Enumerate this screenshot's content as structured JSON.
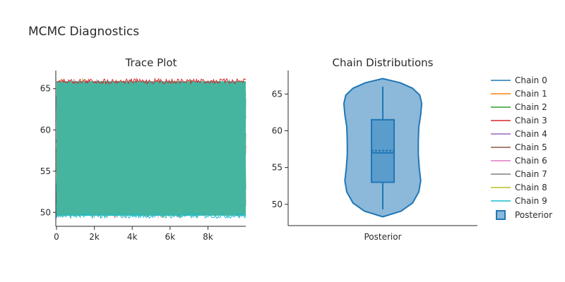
{
  "figure": {
    "title": "MCMC Diagnostics"
  },
  "chart_data": [
    {
      "type": "line",
      "title": "Trace Plot",
      "xlabel": "",
      "ylabel": "",
      "xlim": [
        0,
        10000
      ],
      "ylim": [
        48.4,
        67.2
      ],
      "x_ticks": [
        0,
        2000,
        4000,
        6000,
        8000
      ],
      "x_tick_labels": [
        "0",
        "2k",
        "4k",
        "6k",
        "8k"
      ],
      "y_ticks": [
        50,
        55,
        60,
        65
      ],
      "y_tick_labels": [
        "50",
        "55",
        "60",
        "65"
      ],
      "value_range": [
        49.3,
        66.2
      ],
      "n_iterations": 10000,
      "grid": false,
      "series": [
        {
          "name": "Chain 0",
          "color": "#1f77b4"
        },
        {
          "name": "Chain 1",
          "color": "#ff7f0e"
        },
        {
          "name": "Chain 2",
          "color": "#2ca02c"
        },
        {
          "name": "Chain 3",
          "color": "#d62728"
        },
        {
          "name": "Chain 4",
          "color": "#9467bd"
        },
        {
          "name": "Chain 5",
          "color": "#8c564b"
        },
        {
          "name": "Chain 6",
          "color": "#e377c2"
        },
        {
          "name": "Chain 7",
          "color": "#7f7f7f"
        },
        {
          "name": "Chain 8",
          "color": "#bcbd22"
        },
        {
          "name": "Chain 9",
          "color": "#17becf"
        }
      ]
    },
    {
      "type": "violin",
      "title": "Chain Distributions",
      "xlabel": "",
      "ylabel": "",
      "categories": [
        "Posterior"
      ],
      "ylim": [
        47.1,
        68.2
      ],
      "y_ticks": [
        50,
        55,
        60,
        65
      ],
      "y_tick_labels": [
        "50",
        "55",
        "60",
        "65"
      ],
      "series": [
        {
          "name": "Posterior",
          "color": "#1f77b4",
          "min": 49.3,
          "q1": 53.0,
          "median": 57.0,
          "mean": 57.3,
          "q3": 61.5,
          "max": 66.0,
          "kde_min": 48.3,
          "kde_max": 67.1
        }
      ]
    }
  ],
  "legend": {
    "position": "right",
    "items": [
      {
        "label": "Chain 0",
        "color": "#1f77b4",
        "kind": "line"
      },
      {
        "label": "Chain 1",
        "color": "#ff7f0e",
        "kind": "line"
      },
      {
        "label": "Chain 2",
        "color": "#2ca02c",
        "kind": "line"
      },
      {
        "label": "Chain 3",
        "color": "#d62728",
        "kind": "line"
      },
      {
        "label": "Chain 4",
        "color": "#9467bd",
        "kind": "line"
      },
      {
        "label": "Chain 5",
        "color": "#8c564b",
        "kind": "line"
      },
      {
        "label": "Chain 6",
        "color": "#e377c2",
        "kind": "line"
      },
      {
        "label": "Chain 7",
        "color": "#7f7f7f",
        "kind": "line"
      },
      {
        "label": "Chain 8",
        "color": "#bcbd22",
        "kind": "line"
      },
      {
        "label": "Chain 9",
        "color": "#17becf",
        "kind": "line"
      },
      {
        "label": "Posterior",
        "color": "#1f77b4",
        "kind": "box"
      }
    ]
  }
}
